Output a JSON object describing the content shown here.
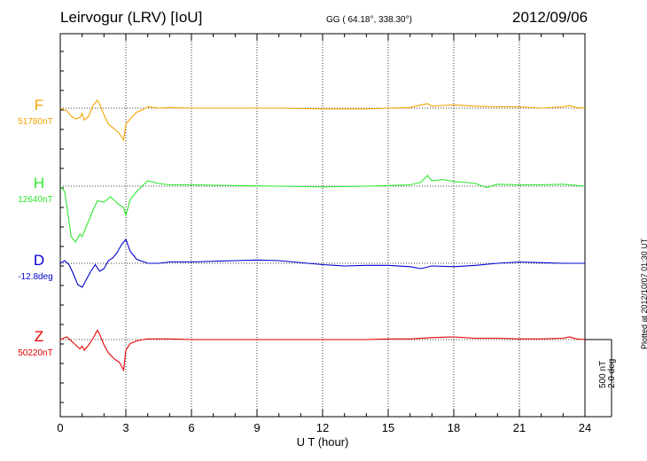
{
  "header": {
    "title": "Leirvogur (LRV)  [IoU]",
    "coords": "GG ( 64.18°, 338.30°)",
    "date": "2012/09/06"
  },
  "side_note": "Plotted at 2012/10/07 01:30 UT",
  "scale_bar": {
    "line1": "500 nT",
    "line2": "2.0 deg"
  },
  "channels": [
    {
      "name": "F",
      "baseline": "51780nT",
      "color": "#f5a300"
    },
    {
      "name": "H",
      "baseline": "12640nT",
      "color": "#2ee82e"
    },
    {
      "name": "D",
      "baseline": "-12.8deg",
      "color": "#0000d0"
    },
    {
      "name": "Z",
      "baseline": "50220nT",
      "color": "#e60000"
    }
  ],
  "chart_data": {
    "type": "line",
    "xlabel": "U T (hour)",
    "xlim": [
      0,
      24
    ],
    "xticks": [
      0,
      3,
      6,
      9,
      12,
      15,
      18,
      21,
      24
    ],
    "y_unit": "nT",
    "grid": "dotted vertical at 3-hour intervals",
    "series": [
      {
        "name": "F",
        "x": [
          0,
          0.3,
          0.5,
          0.7,
          0.9,
          1.0,
          1.1,
          1.3,
          1.5,
          1.7,
          1.8,
          2.0,
          2.2,
          2.5,
          2.7,
          2.9,
          3.0,
          3.2,
          3.5,
          3.8,
          4.0,
          4.5,
          5,
          6,
          8,
          10,
          12,
          14,
          15,
          16,
          16.5,
          16.8,
          17,
          17.5,
          18,
          19,
          20,
          21,
          22,
          23,
          23.3,
          23.6,
          24
        ],
        "y": [
          0,
          -20,
          -60,
          -80,
          -70,
          -40,
          -90,
          -60,
          20,
          60,
          30,
          -50,
          -120,
          -160,
          -190,
          -240,
          -120,
          -80,
          -30,
          -10,
          10,
          0,
          5,
          0,
          0,
          0,
          -5,
          -5,
          0,
          5,
          25,
          35,
          15,
          20,
          25,
          15,
          10,
          10,
          0,
          10,
          20,
          5,
          0
        ]
      },
      {
        "name": "H",
        "x": [
          0,
          0.2,
          0.3,
          0.5,
          0.7,
          0.9,
          1.0,
          1.2,
          1.5,
          1.7,
          2.0,
          2.3,
          2.5,
          2.7,
          2.9,
          3.0,
          3.2,
          3.5,
          4.0,
          4.5,
          5,
          6,
          8,
          10,
          12,
          14,
          15,
          16,
          16.5,
          16.8,
          17,
          17.5,
          18,
          18.5,
          19,
          19.5,
          20,
          21,
          22,
          23,
          24
        ],
        "y": [
          0,
          -40,
          -150,
          -380,
          -420,
          -360,
          -380,
          -300,
          -180,
          -110,
          -120,
          -80,
          -110,
          -140,
          -160,
          -220,
          -100,
          -40,
          40,
          20,
          10,
          10,
          5,
          0,
          -5,
          0,
          5,
          10,
          30,
          80,
          40,
          50,
          35,
          30,
          20,
          -10,
          15,
          10,
          10,
          15,
          0
        ]
      },
      {
        "name": "D",
        "x": [
          0,
          0.2,
          0.4,
          0.6,
          0.8,
          1.0,
          1.2,
          1.4,
          1.6,
          1.8,
          2.0,
          2.2,
          2.4,
          2.6,
          2.8,
          3.0,
          3.2,
          3.5,
          4.0,
          4.5,
          5,
          6,
          8,
          9,
          10,
          12,
          13,
          14,
          15,
          16,
          16.5,
          17,
          18,
          19,
          20,
          21,
          22,
          23,
          24
        ],
        "y": [
          0,
          20,
          -10,
          -80,
          -160,
          -180,
          -120,
          -60,
          -10,
          -60,
          -40,
          20,
          40,
          80,
          140,
          180,
          90,
          30,
          0,
          0,
          10,
          10,
          20,
          25,
          20,
          -10,
          -20,
          -15,
          -15,
          -25,
          -40,
          -20,
          -25,
          -15,
          0,
          10,
          5,
          0,
          0
        ]
      },
      {
        "name": "Z",
        "x": [
          0,
          0.3,
          0.5,
          0.7,
          0.9,
          1.0,
          1.1,
          1.3,
          1.5,
          1.7,
          1.8,
          2.0,
          2.2,
          2.5,
          2.7,
          2.9,
          3.0,
          3.2,
          3.5,
          3.8,
          4.0,
          5,
          6,
          8,
          10,
          12,
          14,
          15,
          16,
          17,
          18,
          19,
          20,
          21,
          22,
          23,
          23.3,
          23.6,
          24
        ],
        "y": [
          0,
          20,
          -10,
          -40,
          -70,
          -50,
          -80,
          -40,
          10,
          70,
          40,
          -40,
          -100,
          -150,
          -170,
          -230,
          -80,
          -30,
          -10,
          0,
          5,
          5,
          0,
          0,
          0,
          0,
          0,
          5,
          5,
          15,
          20,
          10,
          10,
          5,
          5,
          10,
          20,
          5,
          0
        ]
      }
    ]
  }
}
